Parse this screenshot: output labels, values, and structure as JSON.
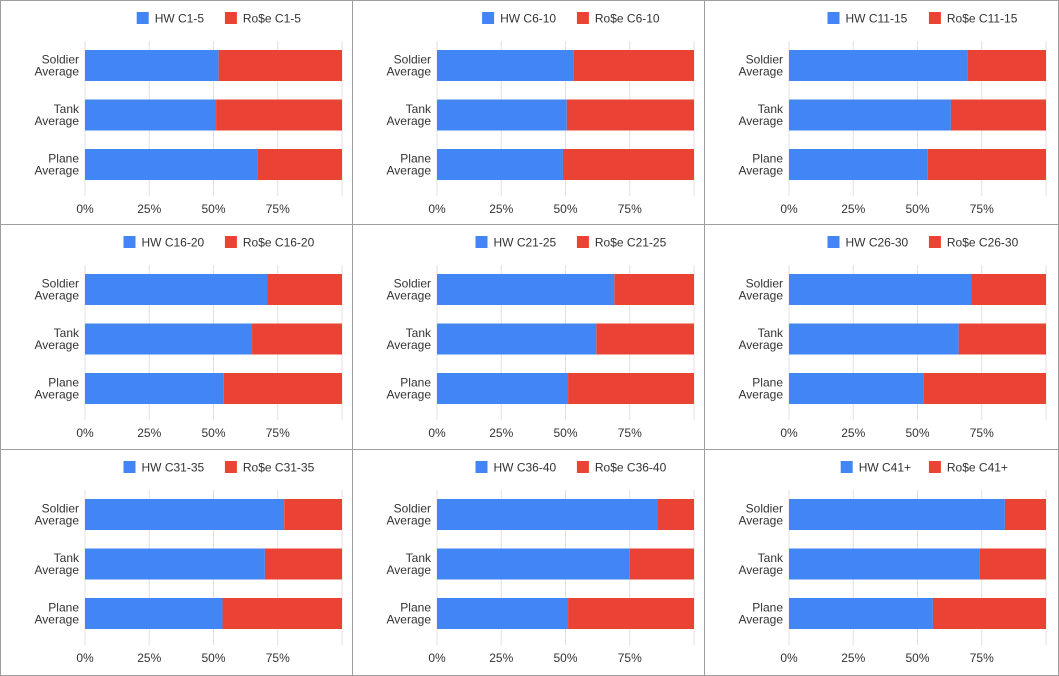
{
  "colors": {
    "hw": "#4285f4",
    "rose": "#ea4335",
    "axis": "#333333",
    "grid": "#e0e0e0"
  },
  "chart_data": [
    {
      "type": "bar",
      "orientation": "horizontal",
      "stacked": "percent",
      "categories": [
        "Soldier Average",
        "Tank Average",
        "Plane Average"
      ],
      "series": [
        {
          "name": "HW C1-5",
          "values": [
            0.52,
            0.51,
            0.67
          ]
        },
        {
          "name": "Ro$e C1-5",
          "values": [
            0.48,
            0.49,
            0.33
          ]
        }
      ],
      "xticks": [
        "0%",
        "25%",
        "50%",
        "75%"
      ],
      "xlim": [
        0,
        1
      ],
      "legend": "top"
    },
    {
      "type": "bar",
      "orientation": "horizontal",
      "stacked": "percent",
      "categories": [
        "Soldier Average",
        "Tank Average",
        "Plane Average"
      ],
      "series": [
        {
          "name": "HW C6-10",
          "values": [
            0.53,
            0.505,
            0.49
          ]
        },
        {
          "name": "Ro$e C6-10",
          "values": [
            0.47,
            0.495,
            0.51
          ]
        }
      ],
      "xticks": [
        "0%",
        "25%",
        "50%",
        "75%"
      ],
      "xlim": [
        0,
        1
      ],
      "legend": "top"
    },
    {
      "type": "bar",
      "orientation": "horizontal",
      "stacked": "percent",
      "categories": [
        "Soldier Average",
        "Tank Average",
        "Plane Average"
      ],
      "series": [
        {
          "name": "HW C11-15",
          "values": [
            0.695,
            0.63,
            0.54
          ]
        },
        {
          "name": "Ro$e C11-15",
          "values": [
            0.305,
            0.37,
            0.46
          ]
        }
      ],
      "xticks": [
        "0%",
        "25%",
        "50%",
        "75%"
      ],
      "xlim": [
        0,
        1
      ],
      "legend": "top"
    },
    {
      "type": "bar",
      "orientation": "horizontal",
      "stacked": "percent",
      "categories": [
        "Soldier Average",
        "Tank Average",
        "Plane Average"
      ],
      "series": [
        {
          "name": "HW C16-20",
          "values": [
            0.71,
            0.65,
            0.54
          ]
        },
        {
          "name": "Ro$e C16-20",
          "values": [
            0.29,
            0.35,
            0.46
          ]
        }
      ],
      "xticks": [
        "0%",
        "25%",
        "50%",
        "75%"
      ],
      "xlim": [
        0,
        1
      ],
      "legend": "top"
    },
    {
      "type": "bar",
      "orientation": "horizontal",
      "stacked": "percent",
      "categories": [
        "Soldier Average",
        "Tank Average",
        "Plane Average"
      ],
      "series": [
        {
          "name": "HW C21-25",
          "values": [
            0.69,
            0.62,
            0.51
          ]
        },
        {
          "name": "Ro$e C21-25",
          "values": [
            0.31,
            0.38,
            0.49
          ]
        }
      ],
      "xticks": [
        "0%",
        "25%",
        "50%",
        "75%"
      ],
      "xlim": [
        0,
        1
      ],
      "legend": "top"
    },
    {
      "type": "bar",
      "orientation": "horizontal",
      "stacked": "percent",
      "categories": [
        "Soldier Average",
        "Tank Average",
        "Plane Average"
      ],
      "series": [
        {
          "name": "HW C26-30",
          "values": [
            0.71,
            0.66,
            0.525
          ]
        },
        {
          "name": "Ro$e C26-30",
          "values": [
            0.29,
            0.34,
            0.475
          ]
        }
      ],
      "xticks": [
        "0%",
        "25%",
        "50%",
        "75%"
      ],
      "xlim": [
        0,
        1
      ],
      "legend": "top"
    },
    {
      "type": "bar",
      "orientation": "horizontal",
      "stacked": "percent",
      "categories": [
        "Soldier Average",
        "Tank Average",
        "Plane Average"
      ],
      "series": [
        {
          "name": "HW C31-35",
          "values": [
            0.775,
            0.7,
            0.535
          ]
        },
        {
          "name": "Ro$e C31-35",
          "values": [
            0.225,
            0.3,
            0.465
          ]
        }
      ],
      "xticks": [
        "0%",
        "25%",
        "50%",
        "75%"
      ],
      "xlim": [
        0,
        1
      ],
      "legend": "top"
    },
    {
      "type": "bar",
      "orientation": "horizontal",
      "stacked": "percent",
      "categories": [
        "Soldier Average",
        "Tank Average",
        "Plane Average"
      ],
      "series": [
        {
          "name": "HW C36-40",
          "values": [
            0.86,
            0.75,
            0.51
          ]
        },
        {
          "name": "Ro$e C36-40",
          "values": [
            0.14,
            0.25,
            0.49
          ]
        }
      ],
      "xticks": [
        "0%",
        "25%",
        "50%",
        "75%"
      ],
      "xlim": [
        0,
        1
      ],
      "legend": "top"
    },
    {
      "type": "bar",
      "orientation": "horizontal",
      "stacked": "percent",
      "categories": [
        "Soldier Average",
        "Tank Average",
        "Plane Average"
      ],
      "series": [
        {
          "name": "HW C41+",
          "values": [
            0.84,
            0.74,
            0.56
          ]
        },
        {
          "name": "Ro$e C41+",
          "values": [
            0.16,
            0.26,
            0.44
          ]
        }
      ],
      "xticks": [
        "0%",
        "25%",
        "50%",
        "75%"
      ],
      "xlim": [
        0,
        1
      ],
      "legend": "top"
    }
  ]
}
